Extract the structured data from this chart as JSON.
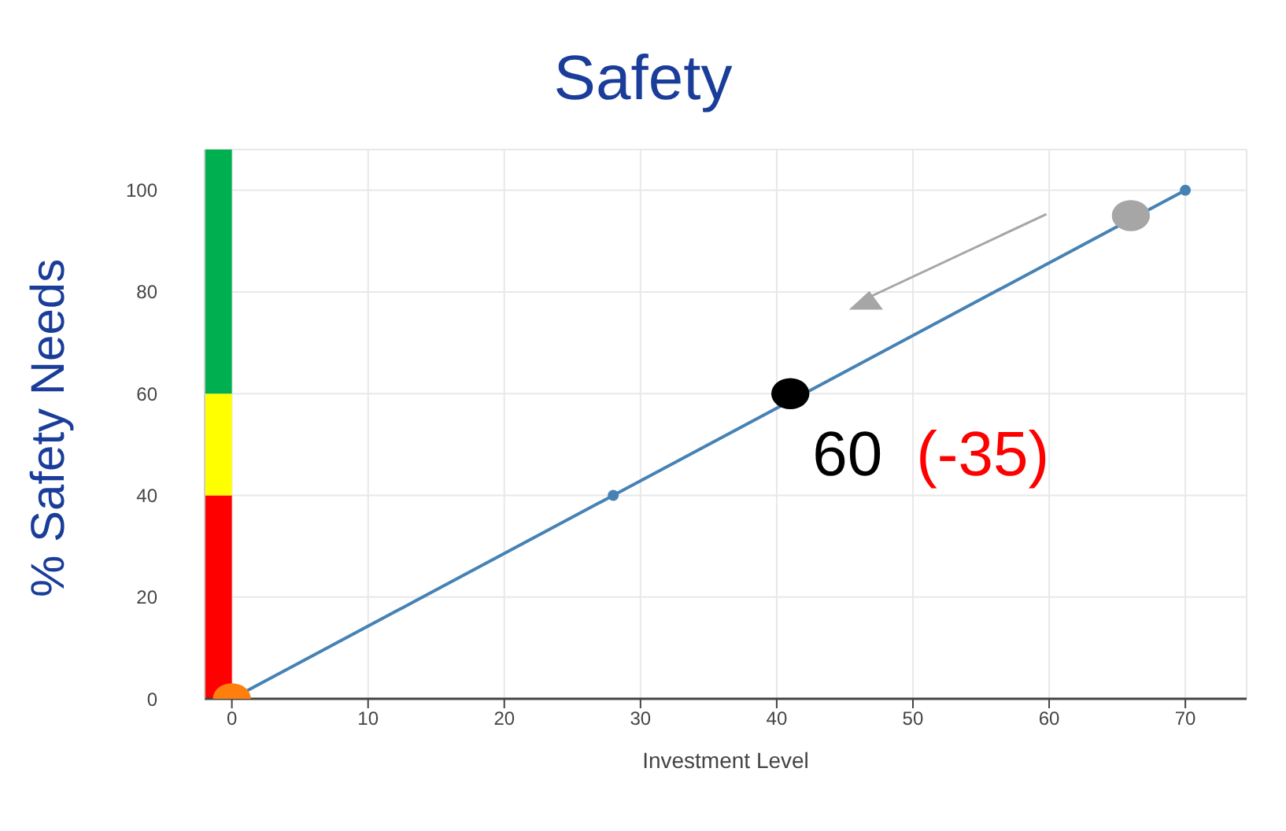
{
  "chart_data": {
    "type": "line",
    "title": "Safety",
    "xlabel": "Investment Level",
    "ylabel": "% Safety Needs",
    "stacked": true,
    "xlim": [
      -2,
      74.5
    ],
    "xticks": [
      0,
      10,
      20,
      30,
      40,
      50,
      60,
      70
    ],
    "ylim": [
      0,
      108
    ],
    "yticks": [
      0,
      20,
      40,
      60,
      80,
      100
    ],
    "grid": true,
    "legend": false,
    "series": [
      {
        "color": "#4682b4",
        "x": [
          0,
          28,
          70
        ],
        "values": [
          0,
          40,
          100
        ],
        "marker": "circle"
      },
      {
        "type": "bar",
        "color": "#ff0000",
        "x": [
          -1
        ],
        "values": [
          40
        ]
      },
      {
        "type": "bar",
        "color": "#ffff00",
        "x": [
          -1
        ],
        "values": [
          20
        ]
      },
      {
        "type": "bar",
        "color": "#00b050",
        "x": [
          -1
        ],
        "values": [
          48
        ]
      },
      {
        "type": "scatter",
        "color": "#ff7f0e",
        "x": [
          0
        ],
        "values": [
          0
        ]
      },
      {
        "type": "scatter",
        "color": "#000000",
        "x": [
          41
        ],
        "values": [
          60
        ]
      },
      {
        "type": "scatter",
        "color": "#a6a6a6",
        "x": [
          66
        ],
        "values": [
          95
        ]
      }
    ],
    "annotations": [
      {
        "text": "60",
        "x": 41,
        "y": 60
      },
      {
        "text": "(-35)",
        "x": 41,
        "y": 60
      }
    ]
  }
}
